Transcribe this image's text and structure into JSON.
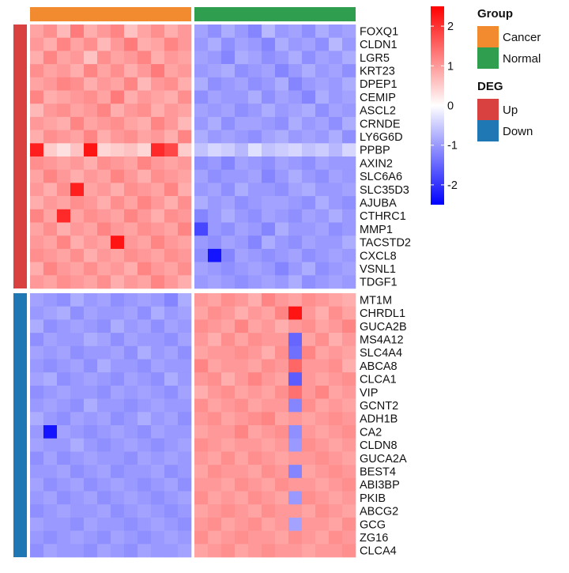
{
  "chart_data": {
    "type": "heatmap",
    "title": "",
    "xlabel": "",
    "ylabel": "",
    "samples_per_group": 12,
    "col_annotation": {
      "title": "Group",
      "levels": [
        {
          "name": "Cancer",
          "color": "#F28A30"
        },
        {
          "name": "Normal",
          "color": "#2F9E4F"
        }
      ]
    },
    "row_annotation": {
      "title": "DEG",
      "levels": [
        {
          "name": "Up",
          "color": "#D94040"
        },
        {
          "name": "Down",
          "color": "#1F78B4"
        }
      ]
    },
    "genes_up": [
      "FOXQ1",
      "CLDN1",
      "LGR5",
      "KRT23",
      "DPEP1",
      "CEMIP",
      "ASCL2",
      "CRNDE",
      "LY6G6D",
      "PPBP",
      "AXIN2",
      "SLC6A6",
      "SLC35D3",
      "AJUBA",
      "CTHRC1",
      "MMP1",
      "TACSTD2",
      "CXCL8",
      "VSNL1",
      "TDGF1"
    ],
    "genes_down": [
      "MT1M",
      "CHRDL1",
      "GUCA2B",
      "MS4A12",
      "SLC4A4",
      "ABCA8",
      "CLCA1",
      "VIP",
      "GCNT2",
      "ADH1B",
      "CA2",
      "CLDN8",
      "GUCA2A",
      "BEST4",
      "ABI3BP",
      "PKIB",
      "ABCG2",
      "GCG",
      "ZG16",
      "CLCA4"
    ],
    "color_scale": {
      "min": -2.5,
      "max": 2.5,
      "low": "#0000FF",
      "mid": "#FFFFFF",
      "high": "#FF0000",
      "ticks": [
        2,
        1,
        0,
        -1,
        -2
      ],
      "tick_labels": [
        "2",
        "1",
        "0",
        "-1",
        "-2"
      ]
    },
    "values_up": [
      [
        0.9,
        1.1,
        0.7,
        1.3,
        0.8,
        1.0,
        1.2,
        0.6,
        0.9,
        1.1,
        0.8,
        1.0,
        -0.9,
        -1.1,
        -0.8,
        -1.0,
        -1.2,
        -0.7,
        -1.0,
        -0.9,
        -1.1,
        -0.8,
        -1.0,
        -0.9
      ],
      [
        1.0,
        0.8,
        1.2,
        0.9,
        1.1,
        0.7,
        1.0,
        1.3,
        0.8,
        0.9,
        1.2,
        1.0,
        -1.0,
        -0.8,
        -1.1,
        -0.9,
        -1.0,
        -1.2,
        -0.8,
        -1.0,
        -0.9,
        -1.1,
        -0.7,
        -1.0
      ],
      [
        0.8,
        1.2,
        0.9,
        1.0,
        0.6,
        1.1,
        0.9,
        1.0,
        1.2,
        0.8,
        1.0,
        0.9,
        -0.9,
        -1.0,
        -1.2,
        -0.8,
        -0.9,
        -1.1,
        -1.0,
        -0.8,
        -1.1,
        -0.9,
        -1.0,
        -0.8
      ],
      [
        1.1,
        0.9,
        1.0,
        0.8,
        1.2,
        0.9,
        1.1,
        0.8,
        1.0,
        1.3,
        0.9,
        1.0,
        -1.0,
        -0.9,
        -0.8,
        -1.1,
        -1.0,
        -0.9,
        -1.2,
        -1.0,
        -0.8,
        -1.0,
        -0.9,
        -1.1
      ],
      [
        0.9,
        1.0,
        1.2,
        1.1,
        0.8,
        1.0,
        0.9,
        1.2,
        0.7,
        1.0,
        1.1,
        0.8,
        -0.8,
        -1.1,
        -1.0,
        -0.9,
        -1.1,
        -1.0,
        -0.8,
        -1.2,
        -1.0,
        -0.9,
        -1.0,
        -0.8
      ],
      [
        1.2,
        0.8,
        0.9,
        1.0,
        1.1,
        0.9,
        1.3,
        0.8,
        1.0,
        0.9,
        0.8,
        1.1,
        -1.1,
        -0.9,
        -1.0,
        -1.0,
        -0.8,
        -1.1,
        -0.9,
        -1.0,
        -1.2,
        -0.8,
        -1.0,
        -0.9
      ],
      [
        0.7,
        1.0,
        1.1,
        0.9,
        1.0,
        1.2,
        0.8,
        1.0,
        1.1,
        0.8,
        1.0,
        0.9,
        -0.9,
        -1.0,
        -0.9,
        -1.1,
        -1.0,
        -0.8,
        -1.0,
        -0.9,
        -0.8,
        -1.1,
        -0.9,
        -1.0
      ],
      [
        1.0,
        0.9,
        0.8,
        1.2,
        0.9,
        1.0,
        1.1,
        0.9,
        0.8,
        1.2,
        1.0,
        0.7,
        -1.0,
        -0.8,
        -1.1,
        -0.9,
        -0.9,
        -1.0,
        -1.1,
        -0.8,
        -1.0,
        -0.9,
        -1.1,
        -0.8
      ],
      [
        0.8,
        1.1,
        1.0,
        0.9,
        1.2,
        0.8,
        1.0,
        1.1,
        0.9,
        1.0,
        0.8,
        1.2,
        -0.8,
        -1.0,
        -0.9,
        -1.0,
        -1.1,
        -0.9,
        -0.8,
        -1.0,
        -0.9,
        -1.0,
        -0.8,
        -1.1
      ],
      [
        2.2,
        0.5,
        0.3,
        0.6,
        2.3,
        0.4,
        0.5,
        0.6,
        0.4,
        2.1,
        1.8,
        0.5,
        -0.6,
        -0.4,
        -0.5,
        -0.7,
        -0.3,
        -0.6,
        -0.5,
        -0.4,
        -0.6,
        -0.5,
        -0.7,
        -0.4
      ],
      [
        1.1,
        1.0,
        0.9,
        1.0,
        0.8,
        1.1,
        1.0,
        0.9,
        1.2,
        1.0,
        0.9,
        1.0,
        -1.1,
        -1.0,
        -1.2,
        -0.9,
        -1.0,
        -1.1,
        -0.9,
        -1.0,
        -1.1,
        -0.9,
        -1.0,
        -1.0
      ],
      [
        0.9,
        1.2,
        1.0,
        0.8,
        1.0,
        0.9,
        1.2,
        1.0,
        0.8,
        1.1,
        1.0,
        0.9,
        -0.9,
        -1.1,
        -1.0,
        -1.0,
        -0.9,
        -1.2,
        -1.0,
        -0.8,
        -1.0,
        -1.1,
        -0.9,
        -1.0
      ],
      [
        1.0,
        0.8,
        1.1,
        2.2,
        0.9,
        1.0,
        0.8,
        1.1,
        1.0,
        0.9,
        1.2,
        0.8,
        -1.0,
        -0.9,
        -1.1,
        -0.8,
        -1.0,
        -1.0,
        -1.1,
        -0.9,
        -0.8,
        -1.0,
        -1.0,
        -0.9
      ],
      [
        0.8,
        1.0,
        0.9,
        1.1,
        1.0,
        0.8,
        1.1,
        0.9,
        1.2,
        1.0,
        0.8,
        1.1,
        -0.8,
        -1.0,
        -0.9,
        -1.1,
        -1.0,
        -0.9,
        -0.9,
        -1.0,
        -1.1,
        -0.8,
        -1.0,
        -1.1
      ],
      [
        1.2,
        0.9,
        2.1,
        0.9,
        1.1,
        1.0,
        0.9,
        1.2,
        1.0,
        0.8,
        1.1,
        1.0,
        -1.2,
        -1.0,
        -0.8,
        -1.0,
        -1.1,
        -0.9,
        -1.0,
        -1.1,
        -0.9,
        -1.0,
        -0.8,
        -1.0
      ],
      [
        0.9,
        1.1,
        0.8,
        1.0,
        0.9,
        1.2,
        1.0,
        0.9,
        1.1,
        1.0,
        0.9,
        1.2,
        -1.8,
        -1.0,
        -1.1,
        -0.9,
        -1.0,
        -1.2,
        -0.8,
        -1.0,
        -1.0,
        -0.9,
        -1.1,
        -1.0
      ],
      [
        1.0,
        0.9,
        1.2,
        0.8,
        1.0,
        0.9,
        2.3,
        1.0,
        0.9,
        1.2,
        1.0,
        0.9,
        -1.0,
        -1.1,
        -0.9,
        -1.0,
        -1.2,
        -0.8,
        -1.0,
        -1.1,
        -0.9,
        -1.0,
        -1.0,
        -0.8
      ],
      [
        1.1,
        1.0,
        0.9,
        1.1,
        0.8,
        1.0,
        0.9,
        1.1,
        1.0,
        0.9,
        1.1,
        1.0,
        -1.1,
        -2.3,
        -1.2,
        -0.9,
        -1.0,
        -1.1,
        -1.0,
        -0.9,
        -1.1,
        -1.0,
        -0.9,
        -1.0
      ],
      [
        0.8,
        1.2,
        1.0,
        0.9,
        1.1,
        0.9,
        1.0,
        0.8,
        1.2,
        1.0,
        0.9,
        1.1,
        -0.9,
        -1.0,
        -1.1,
        -1.0,
        -0.9,
        -1.0,
        -1.2,
        -1.0,
        -0.8,
        -1.1,
        -1.0,
        -0.9
      ],
      [
        1.0,
        0.9,
        1.1,
        1.0,
        0.9,
        1.1,
        0.8,
        1.0,
        0.9,
        1.2,
        1.0,
        0.8,
        -1.0,
        -0.9,
        -1.0,
        -1.1,
        -1.0,
        -0.9,
        -1.0,
        -0.8,
        -1.1,
        -1.0,
        -0.9,
        -1.0
      ]
    ],
    "values_down": [
      [
        -0.9,
        -1.0,
        -1.1,
        -0.8,
        -1.0,
        -0.9,
        -1.1,
        -1.0,
        -0.9,
        -1.0,
        -1.2,
        -0.8,
        1.0,
        0.9,
        1.1,
        1.0,
        0.8,
        1.2,
        1.0,
        0.9,
        1.1,
        1.0,
        0.9,
        0.8
      ],
      [
        -1.0,
        -0.9,
        -0.8,
        -1.1,
        -0.9,
        -1.0,
        -1.0,
        -0.9,
        -1.1,
        -0.8,
        -1.0,
        -0.9,
        0.9,
        1.1,
        1.0,
        0.8,
        1.0,
        0.9,
        1.2,
        2.3,
        1.0,
        0.8,
        1.1,
        0.9
      ],
      [
        -0.8,
        -1.1,
        -1.0,
        -0.9,
        -1.0,
        -1.1,
        -0.8,
        -1.0,
        -0.9,
        -1.1,
        -0.9,
        -1.0,
        1.1,
        1.0,
        0.9,
        1.2,
        0.9,
        1.0,
        0.8,
        1.0,
        1.1,
        0.9,
        1.0,
        1.2
      ],
      [
        -1.1,
        -0.9,
        -1.0,
        -1.0,
        -0.8,
        -0.9,
        -1.1,
        -0.9,
        -1.0,
        -1.0,
        -1.1,
        -0.9,
        1.0,
        0.8,
        1.1,
        0.9,
        1.1,
        1.0,
        1.0,
        -1.5,
        0.9,
        1.1,
        0.8,
        1.0
      ],
      [
        -0.9,
        -1.0,
        -0.9,
        -1.1,
        -1.0,
        -1.0,
        -0.9,
        -1.1,
        -0.8,
        -1.0,
        -0.9,
        -1.1,
        0.9,
        1.0,
        1.0,
        1.1,
        1.0,
        0.8,
        1.1,
        -1.4,
        1.2,
        0.9,
        1.0,
        0.9
      ],
      [
        -1.0,
        -1.1,
        -1.0,
        -0.9,
        -1.1,
        -0.8,
        -1.0,
        -1.0,
        -1.1,
        -0.9,
        -1.0,
        -1.0,
        1.2,
        0.9,
        1.0,
        1.0,
        0.9,
        1.1,
        1.0,
        1.5,
        1.0,
        1.0,
        1.1,
        0.8
      ],
      [
        -0.9,
        -0.8,
        -1.1,
        -1.0,
        -0.9,
        -1.0,
        -1.1,
        -0.9,
        -1.0,
        -1.1,
        -0.8,
        -1.0,
        1.0,
        1.1,
        0.8,
        1.0,
        1.2,
        1.0,
        0.9,
        -1.6,
        1.0,
        0.9,
        1.0,
        1.1
      ],
      [
        -1.1,
        -1.0,
        -0.9,
        -1.0,
        -1.0,
        -1.1,
        -0.9,
        -1.0,
        -0.9,
        -1.0,
        -1.1,
        -0.9,
        0.8,
        1.0,
        1.1,
        0.9,
        1.0,
        0.9,
        1.1,
        1.4,
        1.0,
        1.2,
        0.9,
        1.0
      ],
      [
        -1.0,
        -0.9,
        -1.0,
        -1.1,
        -0.8,
        -1.0,
        -1.0,
        -1.1,
        -1.0,
        -0.9,
        -1.0,
        -1.0,
        1.1,
        0.9,
        1.0,
        1.1,
        0.9,
        1.0,
        1.0,
        -1.2,
        1.1,
        0.9,
        1.0,
        0.9
      ],
      [
        -0.8,
        -1.0,
        -1.1,
        -0.9,
        -1.0,
        -0.9,
        -1.1,
        -1.0,
        -0.8,
        -1.0,
        -0.9,
        -1.1,
        1.0,
        1.1,
        0.9,
        1.0,
        1.1,
        1.2,
        0.9,
        1.0,
        0.9,
        1.0,
        1.1,
        1.0
      ],
      [
        -1.0,
        -2.3,
        -0.9,
        -1.0,
        -1.1,
        -1.0,
        -0.9,
        -1.0,
        -1.1,
        -0.9,
        -1.0,
        -1.0,
        0.9,
        1.0,
        1.0,
        1.2,
        0.9,
        1.0,
        1.1,
        -1.1,
        1.0,
        0.9,
        1.0,
        1.1
      ],
      [
        -0.9,
        -1.0,
        -1.0,
        -0.8,
        -1.0,
        -1.1,
        -1.0,
        -0.9,
        -1.0,
        -1.1,
        -1.0,
        -0.9,
        1.1,
        1.0,
        0.9,
        1.0,
        1.0,
        0.9,
        1.0,
        -1.0,
        1.1,
        1.0,
        0.9,
        1.0
      ],
      [
        -1.1,
        -0.9,
        -1.1,
        -1.0,
        -0.9,
        -1.0,
        -1.0,
        -1.1,
        -0.9,
        -1.0,
        -0.9,
        -1.0,
        1.0,
        0.9,
        1.1,
        0.9,
        1.1,
        1.0,
        0.9,
        1.0,
        1.0,
        1.1,
        1.0,
        0.9
      ],
      [
        -1.0,
        -1.0,
        -0.9,
        -1.1,
        -1.0,
        -0.9,
        -1.1,
        -1.0,
        -1.0,
        -0.9,
        -1.1,
        -1.0,
        0.9,
        1.1,
        1.0,
        1.0,
        0.9,
        1.1,
        1.0,
        -1.2,
        0.9,
        1.0,
        1.1,
        1.0
      ],
      [
        -0.9,
        -1.1,
        -1.0,
        -0.9,
        -1.1,
        -1.0,
        -0.9,
        -1.0,
        -1.1,
        -1.0,
        -0.9,
        -1.1,
        1.0,
        1.0,
        0.9,
        1.1,
        1.0,
        0.9,
        1.1,
        1.0,
        1.0,
        0.9,
        1.0,
        1.1
      ],
      [
        -1.0,
        -0.9,
        -1.1,
        -1.0,
        -0.9,
        -1.1,
        -1.0,
        -0.9,
        -1.0,
        -1.1,
        -1.0,
        -0.9,
        1.1,
        0.9,
        1.0,
        0.9,
        1.1,
        1.0,
        0.9,
        -1.0,
        1.1,
        1.0,
        0.9,
        1.0
      ],
      [
        -1.1,
        -1.0,
        -0.9,
        -1.0,
        -1.0,
        -0.9,
        -1.1,
        -1.0,
        -0.9,
        -1.0,
        -1.1,
        -1.0,
        0.9,
        1.0,
        1.1,
        1.0,
        0.9,
        1.1,
        1.0,
        1.0,
        0.9,
        1.1,
        1.0,
        0.9
      ],
      [
        -0.9,
        -1.0,
        -1.0,
        -1.1,
        -0.9,
        -1.0,
        -1.0,
        -1.1,
        -1.0,
        -0.9,
        -1.0,
        -1.1,
        1.0,
        1.1,
        0.9,
        1.0,
        1.1,
        0.9,
        1.0,
        -0.9,
        1.0,
        1.0,
        0.9,
        1.1
      ],
      [
        -1.0,
        -1.1,
        -1.0,
        -0.9,
        -1.0,
        -1.1,
        -0.9,
        -1.0,
        -1.1,
        -1.0,
        -0.9,
        -1.0,
        1.1,
        0.9,
        1.0,
        1.1,
        1.0,
        1.0,
        0.9,
        1.1,
        1.0,
        0.9,
        1.1,
        1.0
      ],
      [
        -1.1,
        -0.9,
        -1.0,
        -1.0,
        -1.1,
        -0.9,
        -1.0,
        -1.1,
        -0.9,
        -1.0,
        -1.0,
        -0.9,
        0.9,
        1.0,
        1.1,
        0.9,
        1.0,
        1.1,
        1.0,
        1.0,
        0.9,
        1.0,
        1.0,
        1.1
      ]
    ]
  }
}
